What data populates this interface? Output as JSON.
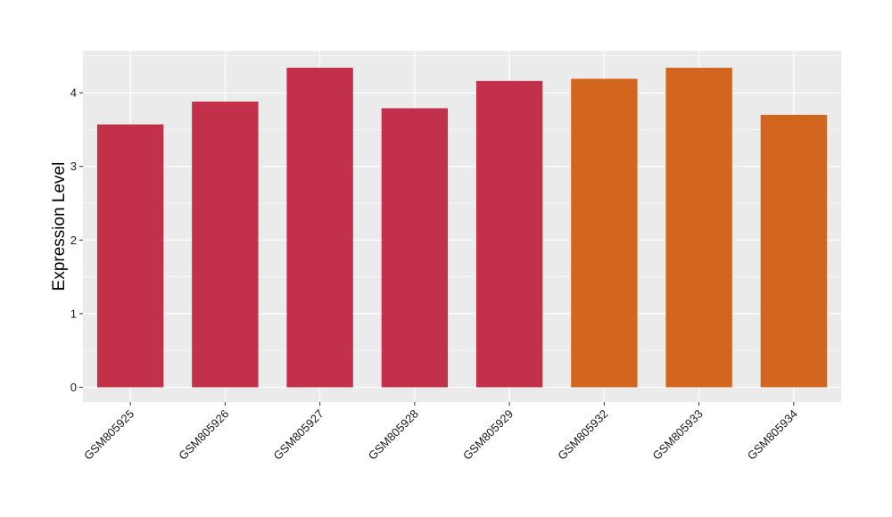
{
  "chart_data": {
    "type": "bar",
    "title": "",
    "xlabel": "",
    "ylabel": "Expression Level",
    "ylim": [
      -0.2,
      4.57
    ],
    "yticks": [
      0,
      1,
      2,
      3,
      4
    ],
    "grid": true,
    "categories": [
      "GSM805925",
      "GSM805926",
      "GSM805927",
      "GSM805928",
      "GSM805929",
      "GSM805932",
      "GSM805933",
      "GSM805934"
    ],
    "values": [
      3.57,
      3.88,
      4.34,
      3.79,
      4.16,
      4.19,
      4.34,
      3.7
    ],
    "bar_colors": [
      "#C3304A",
      "#C3304A",
      "#C3304A",
      "#C3304A",
      "#C3304A",
      "#D2661E",
      "#D2661E",
      "#D2661E"
    ],
    "panel_background": "#EBEBEB",
    "grid_color": "#FFFFFF"
  }
}
